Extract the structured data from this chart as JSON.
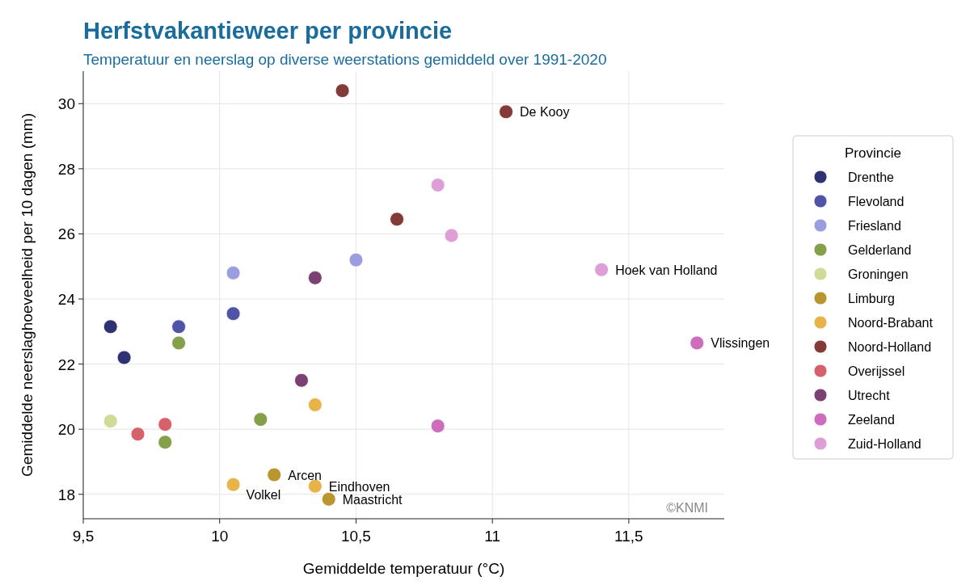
{
  "chart_data": {
    "type": "scatter",
    "title": "Herfstvakantieweer per provincie",
    "subtitle": "Temperatuur en neerslag op diverse weerstations gemiddeld over 1991-2020",
    "xlabel": "Gemiddelde temperatuur (°C)",
    "ylabel": "Gemiddelde neerslaghoeveelheid per 10 dagen (mm)",
    "legend_title": "Provincie",
    "legend": "right",
    "grid": true,
    "marker": "circle",
    "xlim": [
      9.5,
      11.85
    ],
    "ylim": [
      17.25,
      31
    ],
    "xticks": [
      {
        "value": 9.5,
        "label": "9,5"
      },
      10,
      {
        "value": 10.5,
        "label": "10,5"
      },
      11,
      {
        "value": 11.5,
        "label": "11,5"
      }
    ],
    "yticks": [
      18,
      20,
      22,
      24,
      26,
      28,
      30
    ],
    "series": [
      {
        "name": "Drenthe",
        "color": "#2e3272",
        "x": [
          9.6,
          9.65
        ],
        "values": [
          23.15,
          22.2
        ]
      },
      {
        "name": "Flevoland",
        "color": "#5054a6",
        "x": [
          9.85,
          10.05
        ],
        "values": [
          23.15,
          23.55
        ]
      },
      {
        "name": "Friesland",
        "color": "#9b9ddf",
        "x": [
          10.05,
          10.5
        ],
        "values": [
          24.8,
          25.2
        ]
      },
      {
        "name": "Gelderland",
        "color": "#84a04a",
        "x": [
          9.85,
          10.15,
          9.8
        ],
        "values": [
          22.65,
          20.3,
          19.6
        ]
      },
      {
        "name": "Groningen",
        "color": "#cfdb96",
        "x": [
          9.6
        ],
        "values": [
          20.25
        ]
      },
      {
        "name": "Limburg",
        "color": "#b9962f",
        "x": [
          10.2,
          10.4
        ],
        "values": [
          18.6,
          17.85
        ]
      },
      {
        "name": "Noord-Brabant",
        "color": "#e8b44a",
        "x": [
          10.35,
          10.05,
          10.35
        ],
        "values": [
          20.75,
          18.3,
          18.25
        ]
      },
      {
        "name": "Noord-Holland",
        "color": "#843a36",
        "x": [
          10.45,
          11.05,
          10.65
        ],
        "values": [
          30.4,
          29.75,
          26.45
        ]
      },
      {
        "name": "Overijssel",
        "color": "#d6616b",
        "x": [
          9.7,
          9.8
        ],
        "values": [
          19.85,
          20.15
        ]
      },
      {
        "name": "Utrecht",
        "color": "#7b4173",
        "x": [
          10.35,
          10.3
        ],
        "values": [
          24.65,
          21.5
        ]
      },
      {
        "name": "Zeeland",
        "color": "#ce6dbd",
        "x": [
          11.75,
          10.8
        ],
        "values": [
          22.65,
          20.1
        ]
      },
      {
        "name": "Zuid-Holland",
        "color": "#de9ed6",
        "x": [
          10.8,
          10.85,
          11.4
        ],
        "values": [
          27.5,
          25.95,
          24.9
        ]
      }
    ],
    "annotations": [
      {
        "text": "De Kooy",
        "x": 11.05,
        "y": 29.75
      },
      {
        "text": "Hoek van Holland",
        "x": 11.4,
        "y": 24.9
      },
      {
        "text": "Vlissingen",
        "x": 11.75,
        "y": 22.65
      },
      {
        "text": "Arcen",
        "x": 10.2,
        "y": 18.6
      },
      {
        "text": "Eindhoven",
        "x": 10.35,
        "y": 18.25
      },
      {
        "text": "Volkel",
        "x": 10.05,
        "y": 18.3
      },
      {
        "text": "Maastricht",
        "x": 10.4,
        "y": 17.85
      },
      "©KNMI"
    ]
  }
}
